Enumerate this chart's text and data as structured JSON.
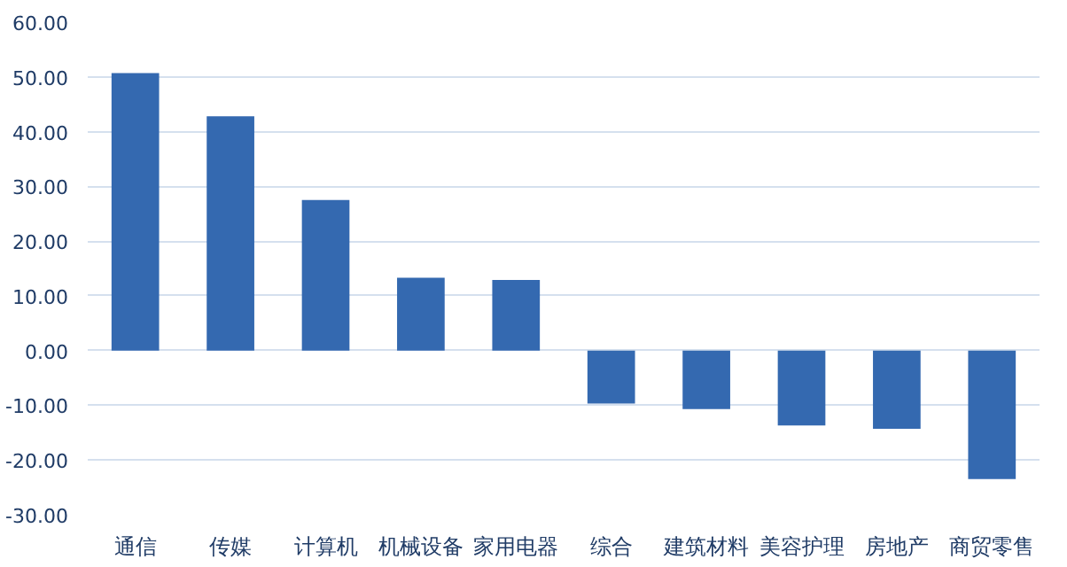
{
  "chart_data": {
    "type": "bar",
    "categories": [
      "通信",
      "传媒",
      "计算机",
      "机械设备",
      "家用电器",
      "综合",
      "建筑材料",
      "美容护理",
      "房地产",
      "商贸零售"
    ],
    "values": [
      50.7,
      42.8,
      27.5,
      13.3,
      12.9,
      -9.7,
      -10.7,
      -13.7,
      -14.3,
      -23.5
    ],
    "color": "#3469b0",
    "ylim": [
      -30,
      60
    ],
    "yticks": [
      {
        "value": -30,
        "label": "-30.00"
      },
      {
        "value": -20,
        "label": "-20.00"
      },
      {
        "value": -10,
        "label": "-10.00"
      },
      {
        "value": 0,
        "label": "0.00"
      },
      {
        "value": 10,
        "label": "10.00"
      },
      {
        "value": 20,
        "label": "20.00"
      },
      {
        "value": 30,
        "label": "30.00"
      },
      {
        "value": 40,
        "label": "40.00"
      },
      {
        "value": 50,
        "label": "50.00"
      },
      {
        "value": 60,
        "label": "60.00"
      }
    ],
    "grid": "y"
  }
}
